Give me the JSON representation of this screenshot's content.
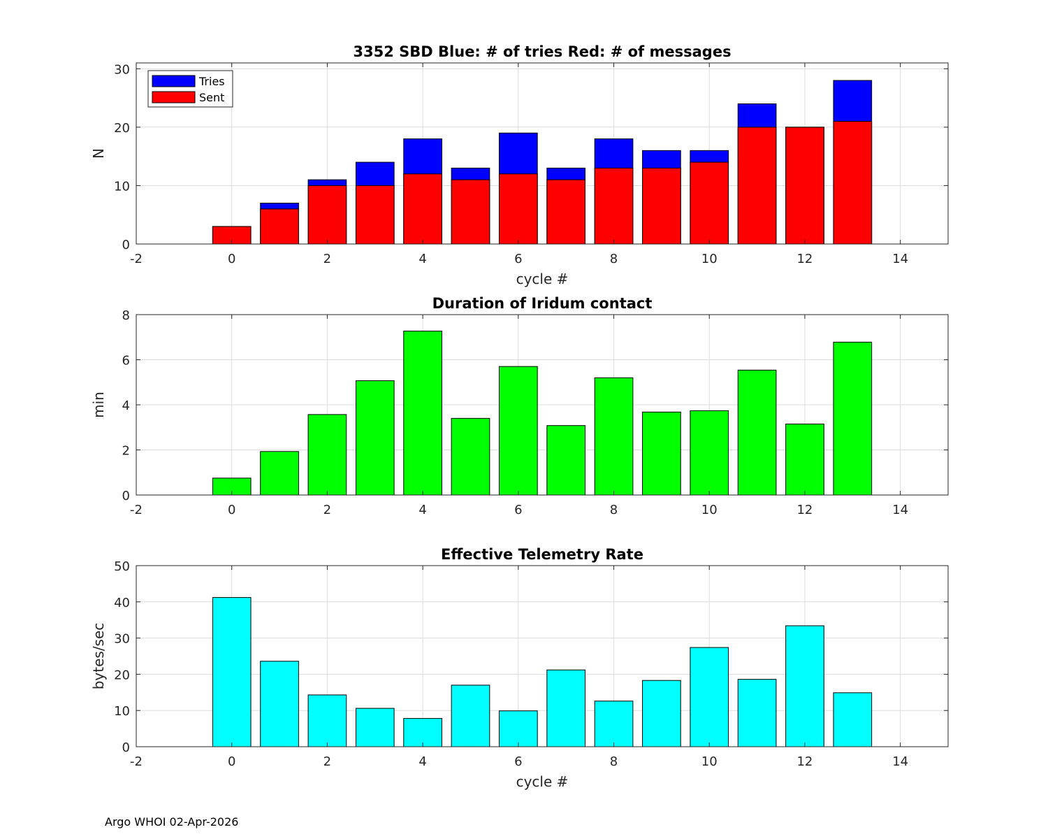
{
  "footer": "Argo WHOI 02-Apr-2026",
  "chart_data": [
    {
      "type": "bar",
      "stacked_overlay": true,
      "title": "3352 SBD  Blue: # of tries   Red: # of messages",
      "xlabel": "cycle #",
      "ylabel": "N",
      "xlim": [
        -2,
        15
      ],
      "ylim": [
        0,
        31
      ],
      "xticks": [
        -2,
        0,
        2,
        4,
        6,
        8,
        10,
        12,
        14
      ],
      "yticks": [
        0,
        10,
        20,
        30
      ],
      "grid": true,
      "legend": "top-left",
      "x": [
        0,
        1,
        2,
        3,
        4,
        5,
        6,
        7,
        8,
        9,
        10,
        11,
        12,
        13
      ],
      "series": [
        {
          "name": "Tries",
          "color": "#0000ff",
          "values": [
            3,
            7,
            11,
            14,
            18,
            13,
            19,
            13,
            18,
            16,
            16,
            24,
            20,
            28
          ]
        },
        {
          "name": "Sent",
          "color": "#ff0000",
          "values": [
            3,
            6,
            10,
            10,
            12,
            11,
            12,
            11,
            13,
            13,
            14,
            20,
            20,
            21
          ]
        }
      ]
    },
    {
      "type": "bar",
      "title": "Duration of Iridum contact",
      "xlabel": "",
      "ylabel": "min",
      "xlim": [
        -2,
        15
      ],
      "ylim": [
        0,
        8
      ],
      "xticks": [
        -2,
        0,
        2,
        4,
        6,
        8,
        10,
        12,
        14
      ],
      "yticks": [
        0,
        2,
        4,
        6,
        8
      ],
      "grid": true,
      "x": [
        0,
        1,
        2,
        3,
        4,
        5,
        6,
        7,
        8,
        9,
        10,
        11,
        12,
        13
      ],
      "series": [
        {
          "name": "Duration",
          "color": "#00ff00",
          "values": [
            0.75,
            1.93,
            3.57,
            5.07,
            7.27,
            3.4,
            5.7,
            3.08,
            5.2,
            3.68,
            3.74,
            5.54,
            3.15,
            6.78
          ]
        }
      ]
    },
    {
      "type": "bar",
      "title": "Effective Telemetry Rate",
      "xlabel": "cycle #",
      "ylabel": "bytes/sec",
      "xlim": [
        -2,
        15
      ],
      "ylim": [
        0,
        50
      ],
      "xticks": [
        -2,
        0,
        2,
        4,
        6,
        8,
        10,
        12,
        14
      ],
      "yticks": [
        0,
        10,
        20,
        30,
        40,
        50
      ],
      "grid": true,
      "x": [
        0,
        1,
        2,
        3,
        4,
        5,
        6,
        7,
        8,
        9,
        10,
        11,
        12,
        13
      ],
      "series": [
        {
          "name": "Rate",
          "color": "#00ffff",
          "values": [
            41.2,
            23.6,
            14.3,
            10.6,
            7.8,
            17.0,
            9.9,
            21.2,
            12.6,
            18.3,
            27.4,
            18.6,
            33.4,
            14.9
          ]
        }
      ]
    }
  ]
}
